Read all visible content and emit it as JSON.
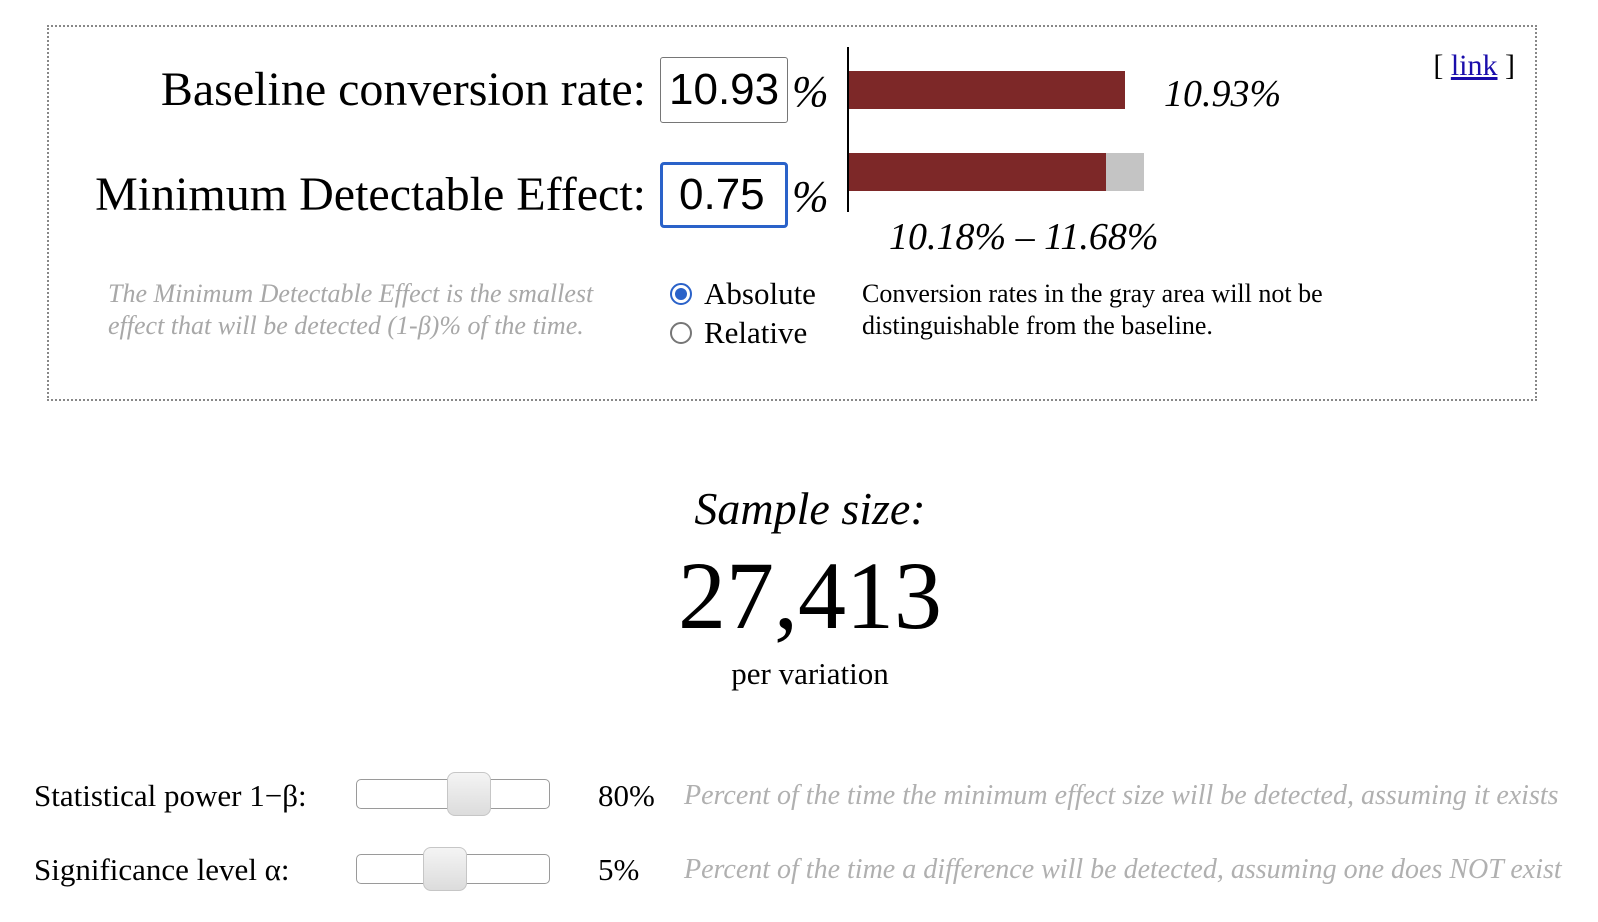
{
  "link": {
    "open": "[",
    "label": "link",
    "close": "]"
  },
  "baseline": {
    "label": "Baseline conversion rate:",
    "value": "10.93",
    "unit": "%",
    "bar_label": "10.93%",
    "bar_value_pct": 10.93
  },
  "mde": {
    "label": "Minimum Detectable Effect:",
    "value": "0.75",
    "unit": "%",
    "range_low_pct": 10.18,
    "range_high_pct": 11.68,
    "range_label": "10.18% – 11.68%"
  },
  "mde_help": "The Minimum Detectable Effect is the smallest effect that will be detected (1-β)% of the time.",
  "mode": {
    "options": [
      "Absolute",
      "Relative"
    ],
    "selected": "Absolute"
  },
  "gray_note": "Conversion rates in the gray area will not be distinguishable from the baseline.",
  "colors": {
    "bar": "#7d2828",
    "gray": "#c4c4c4",
    "focus": "#2a62c9",
    "link": "#1a0dab"
  },
  "result": {
    "title": "Sample size:",
    "value": "27,413",
    "unit": "per variation"
  },
  "power": {
    "label": "Statistical power 1−β:",
    "value_text": "80%",
    "value": 80,
    "help": "Percent of the time the minimum effect size will be detected, assuming it exists"
  },
  "significance": {
    "label": "Significance level α:",
    "value_text": "5%",
    "value": 5,
    "help": "Percent of the time a difference will be detected, assuming one does NOT exist"
  }
}
